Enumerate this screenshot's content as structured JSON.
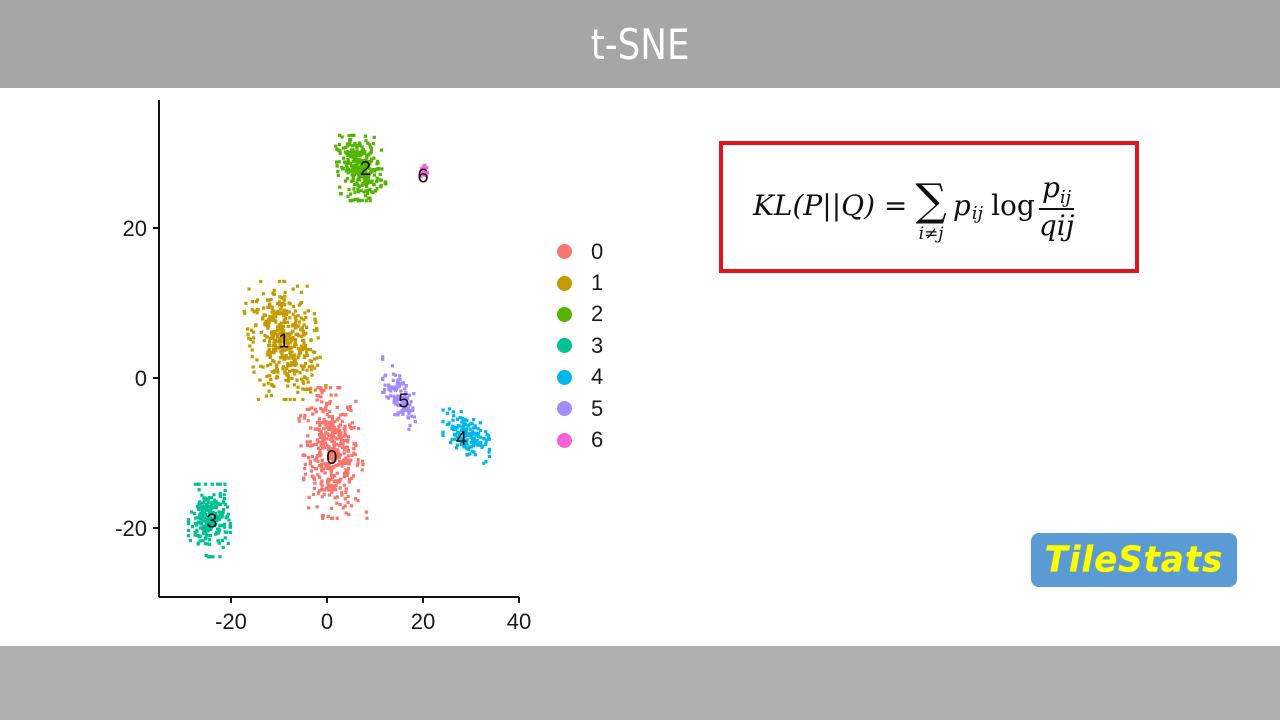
{
  "slide": {
    "title": "t-SNE",
    "header_bg": "#a6a6a6",
    "footer_bg": "#b0b0b0"
  },
  "formula": {
    "lhs": "KL(P||Q) =",
    "sum_symbol": "∑",
    "sum_subscript": "i≠j",
    "term": "p",
    "term_subscript": "ij",
    "log": "log",
    "numerator": "p",
    "numerator_subscript": "ij",
    "denominator": "qij",
    "border_color": "#e0141b"
  },
  "logo": {
    "text": "TileStats",
    "bg_color": "#5b9bd5",
    "text_color": "#ffff00"
  },
  "chart_data": {
    "type": "scatter",
    "title": "",
    "xlabel": "",
    "ylabel": "",
    "xlim": [
      -35,
      40
    ],
    "ylim": [
      -29,
      36
    ],
    "x_ticks": [
      -20,
      0,
      20,
      40
    ],
    "y_ticks": [
      -20,
      0,
      20
    ],
    "x_tick_labels": [
      "-20",
      "0",
      "20",
      "40"
    ],
    "y_tick_labels": [
      "-20",
      "0",
      "20"
    ],
    "grid": false,
    "legend_position": "right",
    "legend": [
      {
        "label": "0",
        "color": "#f8766d"
      },
      {
        "label": "1",
        "color": "#c49a00"
      },
      {
        "label": "2",
        "color": "#53b400"
      },
      {
        "label": "3",
        "color": "#00c094"
      },
      {
        "label": "4",
        "color": "#00b6eb"
      },
      {
        "label": "5",
        "color": "#a58aff"
      },
      {
        "label": "6",
        "color": "#fb61d7"
      }
    ],
    "clusters": [
      {
        "id": "0",
        "color": "#f8766d",
        "center": [
          1,
          -10
        ],
        "spread": [
          5.2,
          7.2
        ],
        "n": 420,
        "label_pos": [
          1,
          -10.5
        ]
      },
      {
        "id": "1",
        "color": "#c49a00",
        "center": [
          -9,
          5
        ],
        "spread": [
          6.0,
          6.5
        ],
        "n": 430,
        "label_pos": [
          -9,
          5
        ]
      },
      {
        "id": "2",
        "color": "#53b400",
        "center": [
          7,
          28
        ],
        "spread": [
          4.0,
          3.6
        ],
        "n": 300,
        "label_pos": [
          8,
          28
        ]
      },
      {
        "id": "3",
        "color": "#00c094",
        "center": [
          -24.5,
          -19
        ],
        "spread": [
          3.6,
          4.0
        ],
        "n": 230,
        "label_pos": [
          -24,
          -19
        ]
      },
      {
        "id": "4",
        "color": "#00b6eb",
        "center": [
          29,
          -7.5
        ],
        "spread": [
          4.0,
          2.2
        ],
        "n": 150,
        "label_pos": [
          28,
          -8
        ]
      },
      {
        "id": "5",
        "color": "#a58aff",
        "center": [
          15,
          -2.5
        ],
        "spread": [
          2.8,
          2.6
        ],
        "n": 110,
        "label_pos": [
          16,
          -3
        ]
      },
      {
        "id": "6",
        "color": "#fb61d7",
        "center": [
          20.3,
          27.5
        ],
        "spread": [
          0.7,
          1.0
        ],
        "n": 18,
        "label_pos": [
          20,
          27
        ]
      }
    ]
  }
}
